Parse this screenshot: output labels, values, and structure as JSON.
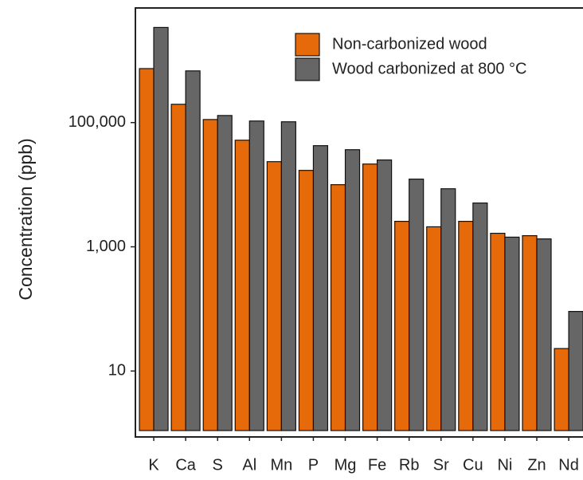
{
  "chart_data": {
    "type": "bar",
    "y_label": "Concentration (ppb)",
    "y_scale": "log",
    "categories": [
      "K",
      "Ca",
      "S",
      "Al",
      "Mn",
      "P",
      "Mg",
      "Fe",
      "Rb",
      "Sr",
      "Cu",
      "Ni",
      "Zn",
      "Nd"
    ],
    "series": [
      {
        "name": "Non-carbonized wood",
        "color": "#e66a0a",
        "values": [
          740000,
          197000,
          112000,
          52000,
          23500,
          17000,
          10000,
          21500,
          2570,
          2100,
          2570,
          1650,
          1510,
          23
        ]
      },
      {
        "name": "Wood carbonized at 800 °C",
        "color": "#666666",
        "values": [
          3400000,
          680000,
          130000,
          106000,
          103000,
          42500,
          36600,
          25000,
          12300,
          8600,
          5070,
          1430,
          1340,
          91
        ]
      }
    ],
    "ylim": [
      1.1,
      7000000
    ],
    "yticks": [
      {
        "value": 100000,
        "label": "100,000"
      },
      {
        "value": 1000,
        "label": "1,000"
      },
      10
    ],
    "grid": false,
    "legend": "top-right"
  }
}
